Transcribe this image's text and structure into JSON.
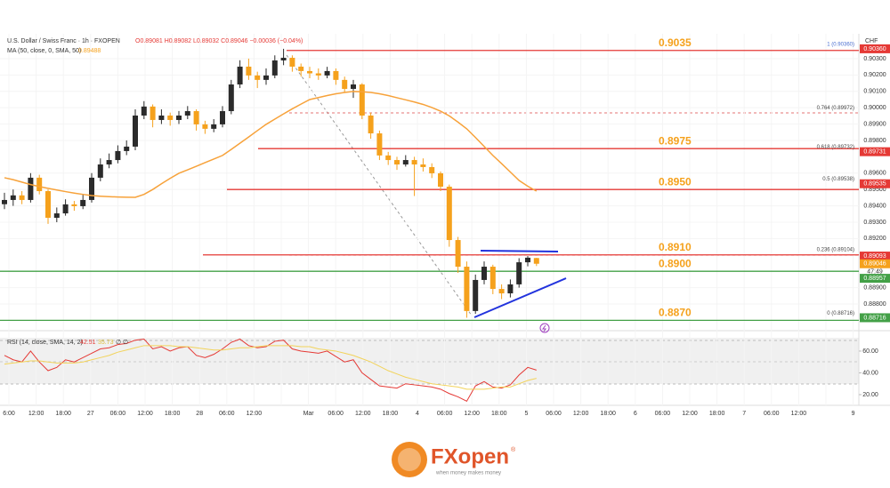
{
  "chart_data": {
    "type": "candlestick",
    "title": "U.S. Dollar / Swiss Franc · 1h · FXOPEN",
    "ohlc_text": "O0.89081  H0.89082  L0.89032  C0.89046  −0.00036 (−0.04%)",
    "ma_text": "MA (50, close, 0, SMA, 50)",
    "ma_value_text": "0.89488",
    "currency": "CHF",
    "up_color": "#2b2b2b",
    "down_color": "#f5a11c",
    "ylim": [
      0.88675,
      0.90441
    ],
    "yticks": [
      {
        "value": 0.903,
        "label": "0.90300"
      },
      {
        "value": 0.902,
        "label": "0.90200"
      },
      {
        "value": 0.901,
        "label": "0.90100"
      },
      {
        "value": 0.9,
        "label": "0.90000"
      },
      {
        "value": 0.899,
        "label": "0.89900"
      },
      {
        "value": 0.898,
        "label": "0.89800"
      },
      {
        "value": 0.896,
        "label": "0.89600"
      },
      {
        "value": 0.895,
        "label": "0.89500"
      },
      {
        "value": 0.894,
        "label": "0.89400"
      },
      {
        "value": 0.893,
        "label": "0.89300"
      },
      {
        "value": 0.892,
        "label": "0.89200"
      },
      {
        "value": 0.889,
        "label": "0.88900"
      },
      {
        "value": 0.888,
        "label": "0.88800"
      }
    ],
    "time_labels": [
      "6:00",
      "12:00",
      "18:00",
      "27",
      "06:00",
      "12:00",
      "18:00",
      "28",
      "06:00",
      "12:00",
      null,
      "Mar",
      "06:00",
      "12:00",
      "18:00",
      "4",
      "06:00",
      "12:00",
      "18:00",
      "5",
      "06:00",
      "12:00",
      "18:00",
      "6",
      "06:00",
      "12:00",
      "18:00",
      "7",
      "06:00",
      "12:00",
      null,
      "9"
    ],
    "candles": [
      [
        0.8941,
        0.8948,
        0.8938,
        0.89436
      ],
      [
        0.89436,
        0.895,
        0.894,
        0.89464
      ],
      [
        0.89464,
        0.8949,
        0.8941,
        0.89436
      ],
      [
        0.89436,
        0.896,
        0.8942,
        0.89572
      ],
      [
        0.89572,
        0.8959,
        0.8947,
        0.8949
      ],
      [
        0.8949,
        0.895,
        0.8929,
        0.89327
      ],
      [
        0.89327,
        0.8939,
        0.893,
        0.89354
      ],
      [
        0.89354,
        0.8944,
        0.8934,
        0.89409
      ],
      [
        0.89409,
        0.8943,
        0.8937,
        0.89398
      ],
      [
        0.89398,
        0.8947,
        0.8938,
        0.89436
      ],
      [
        0.89436,
        0.896,
        0.8942,
        0.89572
      ],
      [
        0.89572,
        0.8969,
        0.8955,
        0.89653
      ],
      [
        0.89653,
        0.8972,
        0.8963,
        0.8968
      ],
      [
        0.8968,
        0.8977,
        0.8966,
        0.89735
      ],
      [
        0.89735,
        0.898,
        0.8971,
        0.89762
      ],
      [
        0.89762,
        0.8999,
        0.8974,
        0.89952
      ],
      [
        0.89952,
        0.9004,
        0.8993,
        0.90007
      ],
      [
        0.90007,
        0.9002,
        0.8988,
        0.89925
      ],
      [
        0.89925,
        0.8999,
        0.899,
        0.89952
      ],
      [
        0.89952,
        0.8997,
        0.8989,
        0.89925
      ],
      [
        0.89925,
        0.8998,
        0.899,
        0.89952
      ],
      [
        0.89952,
        0.9001,
        0.8993,
        0.89979
      ],
      [
        0.89979,
        0.8999,
        0.8986,
        0.89898
      ],
      [
        0.89898,
        0.8992,
        0.8984,
        0.89871
      ],
      [
        0.89871,
        0.8993,
        0.8985,
        0.89898
      ],
      [
        0.89898,
        0.9001,
        0.8988,
        0.89979
      ],
      [
        0.89979,
        0.9017,
        0.8996,
        0.90142
      ],
      [
        0.90142,
        0.9029,
        0.9012,
        0.90251
      ],
      [
        0.90251,
        0.903,
        0.9017,
        0.90197
      ],
      [
        0.90197,
        0.9022,
        0.9012,
        0.9017
      ],
      [
        0.9017,
        0.9024,
        0.9014,
        0.90197
      ],
      [
        0.90197,
        0.9032,
        0.9018,
        0.90289
      ],
      [
        0.90289,
        0.9036,
        0.9026,
        0.90305
      ],
      [
        0.90305,
        0.9032,
        0.9022,
        0.90251
      ],
      [
        0.90251,
        0.9027,
        0.9019,
        0.90224
      ],
      [
        0.90224,
        0.9025,
        0.9018,
        0.9021
      ],
      [
        0.9021,
        0.9024,
        0.9017,
        0.90197
      ],
      [
        0.90197,
        0.9025,
        0.9018,
        0.90224
      ],
      [
        0.90224,
        0.9024,
        0.9014,
        0.9017
      ],
      [
        0.9017,
        0.9019,
        0.9009,
        0.90115
      ],
      [
        0.90115,
        0.9017,
        0.9006,
        0.90142
      ],
      [
        0.90142,
        0.9015,
        0.8993,
        0.89952
      ],
      [
        0.89952,
        0.8997,
        0.8981,
        0.89843
      ],
      [
        0.89843,
        0.8986,
        0.8968,
        0.89708
      ],
      [
        0.89708,
        0.8973,
        0.8965,
        0.8968
      ],
      [
        0.8968,
        0.897,
        0.8962,
        0.89653
      ],
      [
        0.89653,
        0.8971,
        0.8964,
        0.8968
      ],
      [
        0.8968,
        0.897,
        0.8946,
        0.89653
      ],
      [
        0.89653,
        0.8969,
        0.8961,
        0.89637
      ],
      [
        0.89637,
        0.8966,
        0.8957,
        0.89599
      ],
      [
        0.89599,
        0.8961,
        0.8949,
        0.89517
      ],
      [
        0.89517,
        0.8953,
        0.8915,
        0.89191
      ],
      [
        0.89191,
        0.8921,
        0.8899,
        0.89028
      ],
      [
        0.89028,
        0.8906,
        0.88716,
        0.88757
      ],
      [
        0.88757,
        0.8898,
        0.8874,
        0.88947
      ],
      [
        0.88947,
        0.8906,
        0.8892,
        0.89028
      ],
      [
        0.89028,
        0.8904,
        0.8886,
        0.88892
      ],
      [
        0.88892,
        0.8892,
        0.8883,
        0.88865
      ],
      [
        0.88865,
        0.8895,
        0.8884,
        0.8892
      ],
      [
        0.8892,
        0.8908,
        0.889,
        0.89055
      ],
      [
        0.89055,
        0.89093,
        0.8903,
        0.89083
      ],
      [
        0.89081,
        0.89082,
        0.89032,
        0.89046
      ]
    ],
    "ma": {
      "color": "#f7a23a",
      "values": [
        0.89572,
        0.8956,
        0.89545,
        0.8953,
        0.89518,
        0.89507,
        0.89497,
        0.89487,
        0.89478,
        0.8947,
        0.89463,
        0.89459,
        0.89456,
        0.89454,
        0.89453,
        0.89452,
        0.8947,
        0.895,
        0.89535,
        0.89568,
        0.89599,
        0.8962,
        0.89642,
        0.89664,
        0.89686,
        0.89708,
        0.89745,
        0.89783,
        0.89821,
        0.8986,
        0.89898,
        0.8993,
        0.89962,
        0.89993,
        0.90022,
        0.9005,
        0.90062,
        0.90074,
        0.90085,
        0.90093,
        0.90099,
        0.90097,
        0.90093,
        0.90085,
        0.90074,
        0.90061,
        0.90048,
        0.90035,
        0.9002,
        0.90001,
        0.89979,
        0.8995,
        0.89912,
        0.89871,
        0.89818,
        0.89763,
        0.89708,
        0.89658,
        0.89607,
        0.89555,
        0.8952,
        0.8949
      ]
    },
    "levels": [
      {
        "value": 0.9035,
        "color": "#e53935"
      },
      {
        "value": 0.8975,
        "color": "#e53935"
      },
      {
        "value": 0.895,
        "label": "0.8950",
        "color": "#e53935"
      },
      {
        "value": 0.891,
        "label": "0.8910",
        "color": "#e53935"
      },
      {
        "value": 0.89,
        "label": "0.8900",
        "color": "#43a047"
      },
      {
        "value": 0.887,
        "label": "0.8870",
        "color": "#43a047"
      }
    ],
    "fib_labels": [
      {
        "value": 0.9036,
        "label": "1 (0.90360)"
      },
      {
        "value": 0.89972,
        "label": "0.764 (0.89972)"
      },
      {
        "value": 0.89732,
        "label": "0.618 (0.89732)"
      },
      {
        "value": 0.89538,
        "label": "0.5 (0.89538)"
      },
      {
        "value": 0.89104,
        "label": "0.236 (0.89104)"
      },
      {
        "value": 0.88716,
        "label": "0 (0.88716)"
      }
    ],
    "price_tags": [
      {
        "value": 0.9036,
        "label": "0.90360",
        "color": "#e53935"
      },
      {
        "value": 0.89731,
        "color": "#e53935"
      },
      {
        "value": 0.89535,
        "color": "#e53935"
      },
      {
        "value": 0.89093,
        "color": "#e53935"
      },
      {
        "value": 0.89046,
        "color": "#f5a11c"
      },
      {
        "value": 0.88957,
        "color": "#43a047"
      },
      {
        "value": 0.88716,
        "color": "#43a047"
      }
    ],
    "countdown": "47:49",
    "rsi": {
      "title": "RSI (14, close, SMA, 14, 2)",
      "value_text": "42.51",
      "ma_value_text": "35.73",
      "extra_text": "∅  ∅",
      "ylim": [
        11,
        72.2
      ],
      "yticks": [
        {
          "value": 60,
          "label": "60.00"
        },
        {
          "value": 40,
          "label": "40.00"
        },
        {
          "value": 20,
          "label": "20.00"
        }
      ],
      "series": [
        {
          "color": "#e53935",
          "values": [
            56,
            52,
            50,
            60,
            50,
            42,
            45,
            52,
            50,
            54,
            58,
            62,
            63,
            66,
            67,
            70,
            71,
            62,
            64,
            60,
            63,
            64,
            56,
            54,
            57,
            62,
            68,
            71,
            65,
            63,
            64,
            69,
            70,
            62,
            60,
            59,
            58,
            60,
            55,
            50,
            52,
            40,
            34,
            28,
            27,
            26,
            30,
            29,
            28,
            27,
            25,
            21,
            18,
            14,
            28,
            32,
            27,
            26,
            29,
            38,
            45,
            42.51
          ]
        },
        {
          "color": "#f2d35a",
          "values": [
            48,
            49,
            50,
            51,
            51,
            50,
            49,
            49,
            49,
            50,
            52,
            54,
            56,
            59,
            61,
            63,
            65,
            65,
            65,
            65,
            64,
            64,
            63,
            62,
            61,
            61,
            62,
            63,
            63,
            64,
            65,
            65,
            65,
            65,
            64,
            64,
            62,
            61,
            60,
            58,
            56,
            53,
            50,
            46,
            42,
            39,
            36,
            34,
            32,
            30,
            29,
            28,
            27,
            25,
            25,
            25,
            26,
            27,
            27,
            30,
            33,
            35
          ]
        }
      ]
    }
  },
  "logo": {
    "brand": "FXopen",
    "tagline": "when money makes money",
    "mark": "®"
  }
}
